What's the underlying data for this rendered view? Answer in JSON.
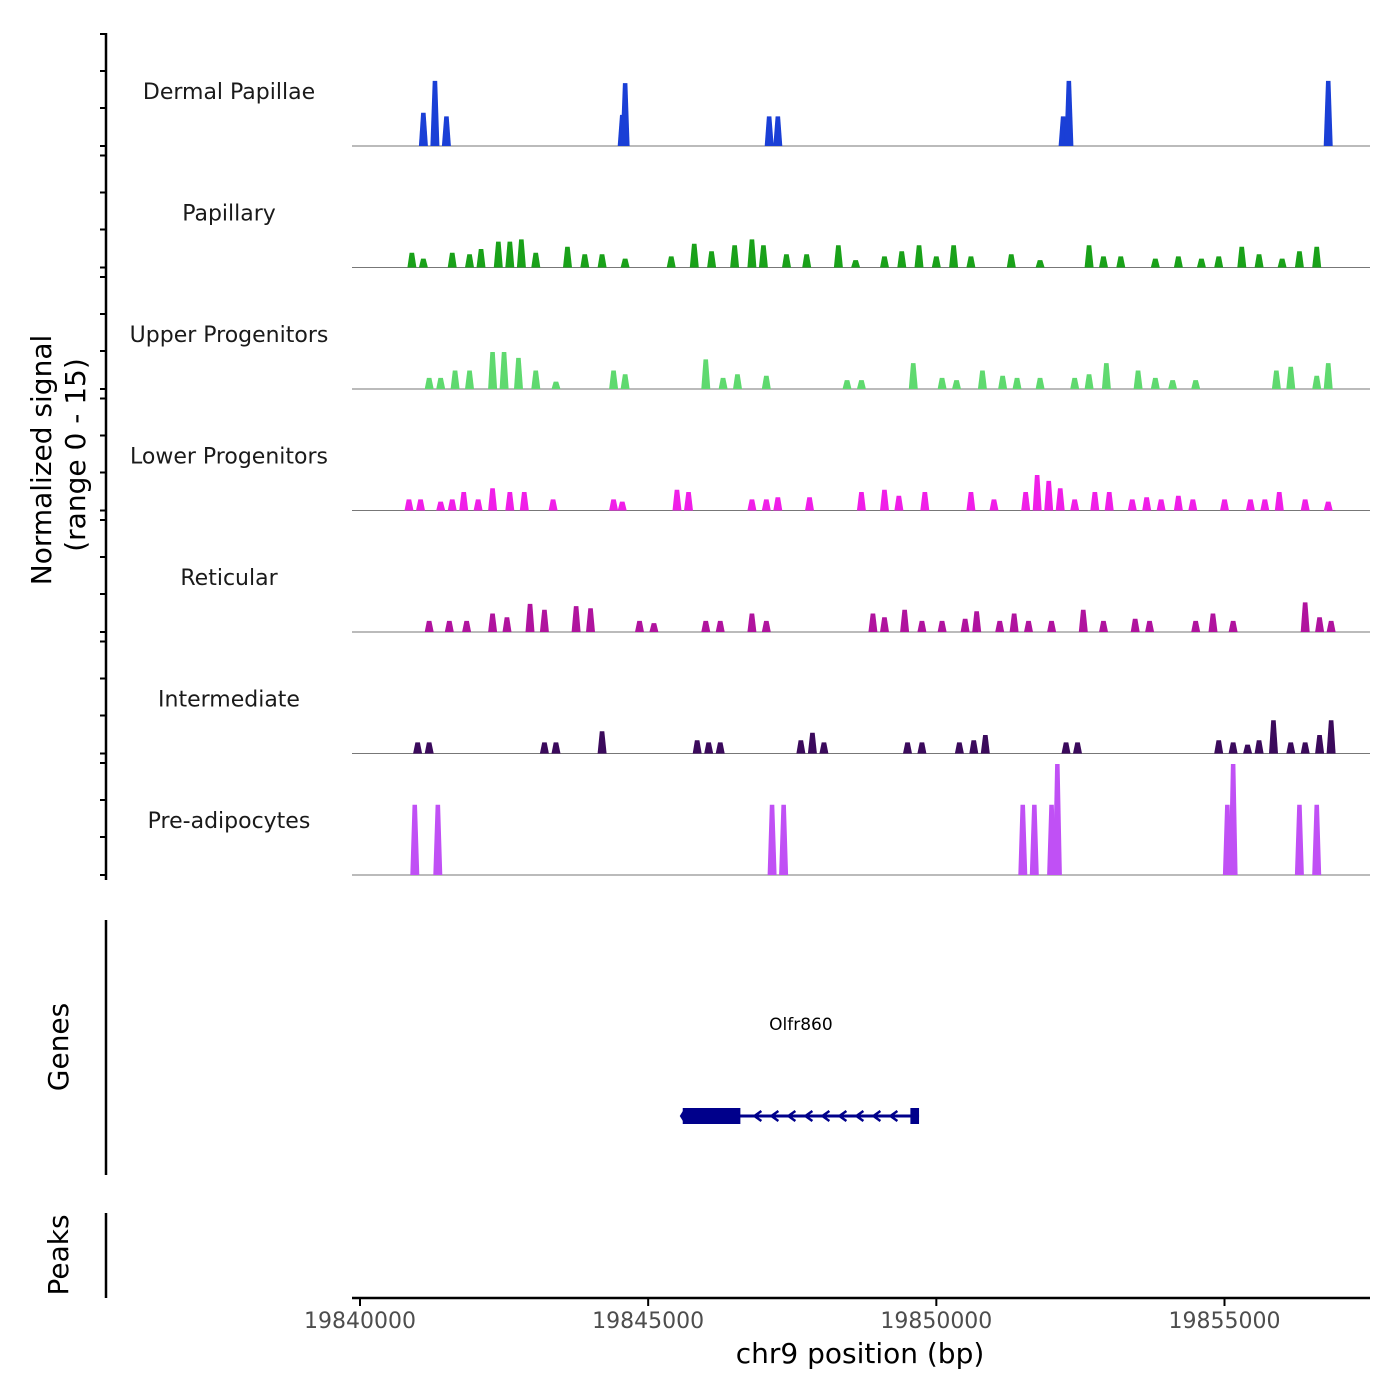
{
  "chart_data": {
    "type": "area",
    "title": "",
    "xlabel": "chr9 position (bp)",
    "ylabel": "Normalized signal",
    "ylabel_range": "(range 0 - 15)",
    "ylim": [
      0,
      15
    ],
    "xlim": [
      19840000,
      19857750
    ],
    "x_ticks": [
      19840000,
      19845000,
      19850000,
      19855000
    ],
    "x_tick_labels": [
      "19840000",
      "19845000",
      "19850000",
      "19855000"
    ],
    "panel_labels": {
      "genes": "Genes",
      "peaks": "Peaks"
    },
    "gene": {
      "name": "Olfr860",
      "start": 19845600,
      "end": 19849700,
      "strand": "-",
      "exons": [
        [
          19845600,
          19846600
        ],
        [
          19849550,
          19849700
        ]
      ],
      "color": "#00008B"
    },
    "series": [
      {
        "name": "Dermal Papillae",
        "color": "#1A3FD6",
        "peaks": [
          [
            19841100,
            4.5
          ],
          [
            19841300,
            8.8
          ],
          [
            19841500,
            4.0
          ],
          [
            19844550,
            4.2
          ],
          [
            19844600,
            8.5
          ],
          [
            19847100,
            4.0
          ],
          [
            19847250,
            4.0
          ],
          [
            19852200,
            4.0
          ],
          [
            19852300,
            8.8
          ],
          [
            19856800,
            8.8
          ]
        ]
      },
      {
        "name": "Papillary",
        "color": "#19A119",
        "peaks": [
          [
            19840900,
            2.0
          ],
          [
            19841100,
            1.2
          ],
          [
            19841600,
            2.0
          ],
          [
            19841900,
            1.8
          ],
          [
            19842100,
            2.5
          ],
          [
            19842400,
            3.5
          ],
          [
            19842600,
            3.5
          ],
          [
            19842800,
            3.8
          ],
          [
            19843050,
            2.0
          ],
          [
            19843600,
            2.8
          ],
          [
            19843900,
            1.8
          ],
          [
            19844200,
            1.8
          ],
          [
            19844600,
            1.2
          ],
          [
            19845400,
            1.5
          ],
          [
            19845800,
            3.2
          ],
          [
            19846100,
            2.2
          ],
          [
            19846500,
            3.0
          ],
          [
            19846800,
            3.8
          ],
          [
            19847000,
            3.0
          ],
          [
            19847400,
            1.8
          ],
          [
            19847750,
            1.8
          ],
          [
            19848300,
            3.0
          ],
          [
            19848600,
            1.0
          ],
          [
            19849100,
            1.5
          ],
          [
            19849400,
            2.2
          ],
          [
            19849700,
            3.0
          ],
          [
            19850000,
            1.5
          ],
          [
            19850300,
            3.0
          ],
          [
            19850600,
            1.5
          ],
          [
            19851300,
            1.8
          ],
          [
            19851800,
            1.0
          ],
          [
            19852650,
            3.0
          ],
          [
            19852900,
            1.5
          ],
          [
            19853200,
            1.5
          ],
          [
            19853800,
            1.2
          ],
          [
            19854200,
            1.5
          ],
          [
            19854600,
            1.2
          ],
          [
            19854900,
            1.5
          ],
          [
            19855300,
            2.8
          ],
          [
            19855600,
            1.8
          ],
          [
            19856000,
            1.2
          ],
          [
            19856300,
            2.2
          ],
          [
            19856600,
            2.8
          ]
        ]
      },
      {
        "name": "Upper Progenitors",
        "color": "#5FD96F",
        "peaks": [
          [
            19841200,
            1.5
          ],
          [
            19841400,
            1.5
          ],
          [
            19841650,
            2.5
          ],
          [
            19841900,
            2.5
          ],
          [
            19842300,
            5.0
          ],
          [
            19842500,
            5.0
          ],
          [
            19842750,
            4.2
          ],
          [
            19843050,
            2.5
          ],
          [
            19843400,
            1.0
          ],
          [
            19844400,
            2.5
          ],
          [
            19844600,
            2.0
          ],
          [
            19846000,
            4.0
          ],
          [
            19846300,
            1.5
          ],
          [
            19846550,
            2.0
          ],
          [
            19847050,
            1.8
          ],
          [
            19848450,
            1.2
          ],
          [
            19848700,
            1.2
          ],
          [
            19849600,
            3.5
          ],
          [
            19850100,
            1.5
          ],
          [
            19850350,
            1.2
          ],
          [
            19850800,
            2.5
          ],
          [
            19851150,
            1.8
          ],
          [
            19851400,
            1.5
          ],
          [
            19851800,
            1.5
          ],
          [
            19852400,
            1.5
          ],
          [
            19852650,
            2.0
          ],
          [
            19852950,
            3.5
          ],
          [
            19853500,
            2.5
          ],
          [
            19853800,
            1.5
          ],
          [
            19854100,
            1.2
          ],
          [
            19854500,
            1.2
          ],
          [
            19855900,
            2.5
          ],
          [
            19856150,
            3.0
          ],
          [
            19856600,
            1.8
          ],
          [
            19856800,
            3.5
          ]
        ]
      },
      {
        "name": "Lower Progenitors",
        "color": "#F01EE8",
        "peaks": [
          [
            19840850,
            1.5
          ],
          [
            19841050,
            1.5
          ],
          [
            19841400,
            1.2
          ],
          [
            19841600,
            1.5
          ],
          [
            19841800,
            2.5
          ],
          [
            19842050,
            1.5
          ],
          [
            19842300,
            3.0
          ],
          [
            19842600,
            2.5
          ],
          [
            19842850,
            2.5
          ],
          [
            19843350,
            1.5
          ],
          [
            19844400,
            1.5
          ],
          [
            19844550,
            1.2
          ],
          [
            19845500,
            2.8
          ],
          [
            19845700,
            2.5
          ],
          [
            19846800,
            1.5
          ],
          [
            19847050,
            1.5
          ],
          [
            19847250,
            1.8
          ],
          [
            19847800,
            1.8
          ],
          [
            19848700,
            2.5
          ],
          [
            19849100,
            2.8
          ],
          [
            19849350,
            2.0
          ],
          [
            19849800,
            2.5
          ],
          [
            19850600,
            2.5
          ],
          [
            19851000,
            1.5
          ],
          [
            19851550,
            2.5
          ],
          [
            19851750,
            4.8
          ],
          [
            19851950,
            4.0
          ],
          [
            19852150,
            3.0
          ],
          [
            19852400,
            1.5
          ],
          [
            19852750,
            2.5
          ],
          [
            19853000,
            2.5
          ],
          [
            19853400,
            1.5
          ],
          [
            19853650,
            1.8
          ],
          [
            19853900,
            1.5
          ],
          [
            19854200,
            2.0
          ],
          [
            19854450,
            1.5
          ],
          [
            19855000,
            1.5
          ],
          [
            19855450,
            1.5
          ],
          [
            19855700,
            1.5
          ],
          [
            19855950,
            2.5
          ],
          [
            19856400,
            1.5
          ],
          [
            19856800,
            1.2
          ]
        ]
      },
      {
        "name": "Reticular",
        "color": "#B0139E",
        "peaks": [
          [
            19841200,
            1.5
          ],
          [
            19841550,
            1.5
          ],
          [
            19841850,
            1.5
          ],
          [
            19842300,
            2.5
          ],
          [
            19842550,
            2.0
          ],
          [
            19842950,
            3.8
          ],
          [
            19843200,
            3.0
          ],
          [
            19843750,
            3.5
          ],
          [
            19844000,
            3.2
          ],
          [
            19844850,
            1.5
          ],
          [
            19845100,
            1.2
          ],
          [
            19846000,
            1.5
          ],
          [
            19846250,
            1.5
          ],
          [
            19846800,
            2.5
          ],
          [
            19847050,
            1.5
          ],
          [
            19848900,
            2.5
          ],
          [
            19849100,
            2.0
          ],
          [
            19849450,
            3.0
          ],
          [
            19849750,
            1.5
          ],
          [
            19850100,
            1.5
          ],
          [
            19850500,
            1.8
          ],
          [
            19850700,
            2.8
          ],
          [
            19851100,
            1.5
          ],
          [
            19851350,
            2.5
          ],
          [
            19851600,
            1.5
          ],
          [
            19852000,
            1.5
          ],
          [
            19852550,
            3.0
          ],
          [
            19852900,
            1.5
          ],
          [
            19853450,
            1.8
          ],
          [
            19853700,
            1.5
          ],
          [
            19854500,
            1.5
          ],
          [
            19854800,
            2.5
          ],
          [
            19855150,
            1.5
          ],
          [
            19856400,
            4.0
          ],
          [
            19856650,
            2.0
          ],
          [
            19856850,
            1.5
          ]
        ]
      },
      {
        "name": "Intermediate",
        "color": "#3B0A5C",
        "peaks": [
          [
            19841000,
            1.5
          ],
          [
            19841200,
            1.5
          ],
          [
            19843200,
            1.5
          ],
          [
            19843400,
            1.5
          ],
          [
            19844200,
            3.0
          ],
          [
            19845850,
            1.8
          ],
          [
            19846050,
            1.5
          ],
          [
            19846250,
            1.5
          ],
          [
            19847650,
            1.8
          ],
          [
            19847850,
            2.8
          ],
          [
            19848050,
            1.5
          ],
          [
            19849500,
            1.5
          ],
          [
            19849750,
            1.5
          ],
          [
            19850400,
            1.5
          ],
          [
            19850650,
            1.8
          ],
          [
            19850850,
            2.5
          ],
          [
            19852250,
            1.5
          ],
          [
            19852450,
            1.5
          ],
          [
            19854900,
            1.8
          ],
          [
            19855150,
            1.5
          ],
          [
            19855400,
            1.2
          ],
          [
            19855600,
            1.8
          ],
          [
            19855850,
            4.5
          ],
          [
            19856150,
            1.5
          ],
          [
            19856400,
            1.5
          ],
          [
            19856650,
            2.5
          ],
          [
            19856850,
            4.5
          ]
        ]
      },
      {
        "name": "Pre-adipocytes",
        "color": "#C050F5",
        "peaks": [
          [
            19840950,
            9.5
          ],
          [
            19841350,
            9.5
          ],
          [
            19847150,
            9.5
          ],
          [
            19847350,
            9.5
          ],
          [
            19851500,
            9.5
          ],
          [
            19851700,
            9.5
          ],
          [
            19852000,
            9.5
          ],
          [
            19852100,
            15.0
          ],
          [
            19855050,
            9.5
          ],
          [
            19855150,
            15.0
          ],
          [
            19856300,
            9.5
          ],
          [
            19856600,
            9.5
          ]
        ]
      }
    ]
  }
}
